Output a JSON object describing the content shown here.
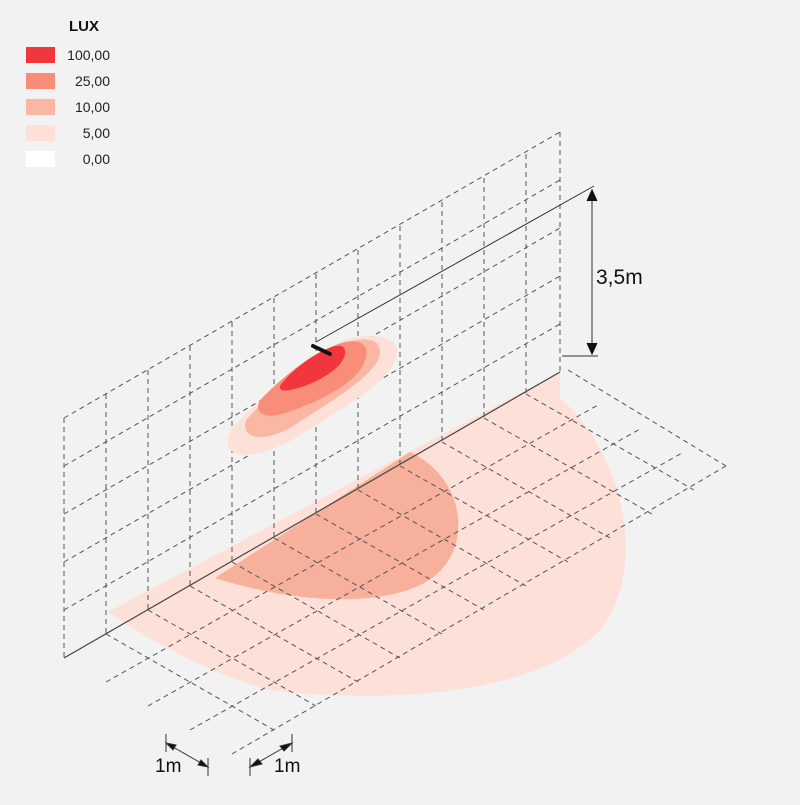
{
  "legend": {
    "title": "LUX",
    "items": [
      {
        "label": "100,00",
        "color": "#f1363e"
      },
      {
        "label": "25,00",
        "color": "#f88d79"
      },
      {
        "label": "10,00",
        "color": "#fab7a3"
      },
      {
        "label": "5,00",
        "color": "#fde0d7"
      },
      {
        "label": "0,00",
        "color": "#ffffff"
      }
    ]
  },
  "dimensions": {
    "height_label": "3,5m",
    "grid_label_a": "1m",
    "grid_label_b": "1m"
  },
  "colors": {
    "background": "#f2f2f2",
    "grid_line": "#555555",
    "fixture": "#111111"
  }
}
